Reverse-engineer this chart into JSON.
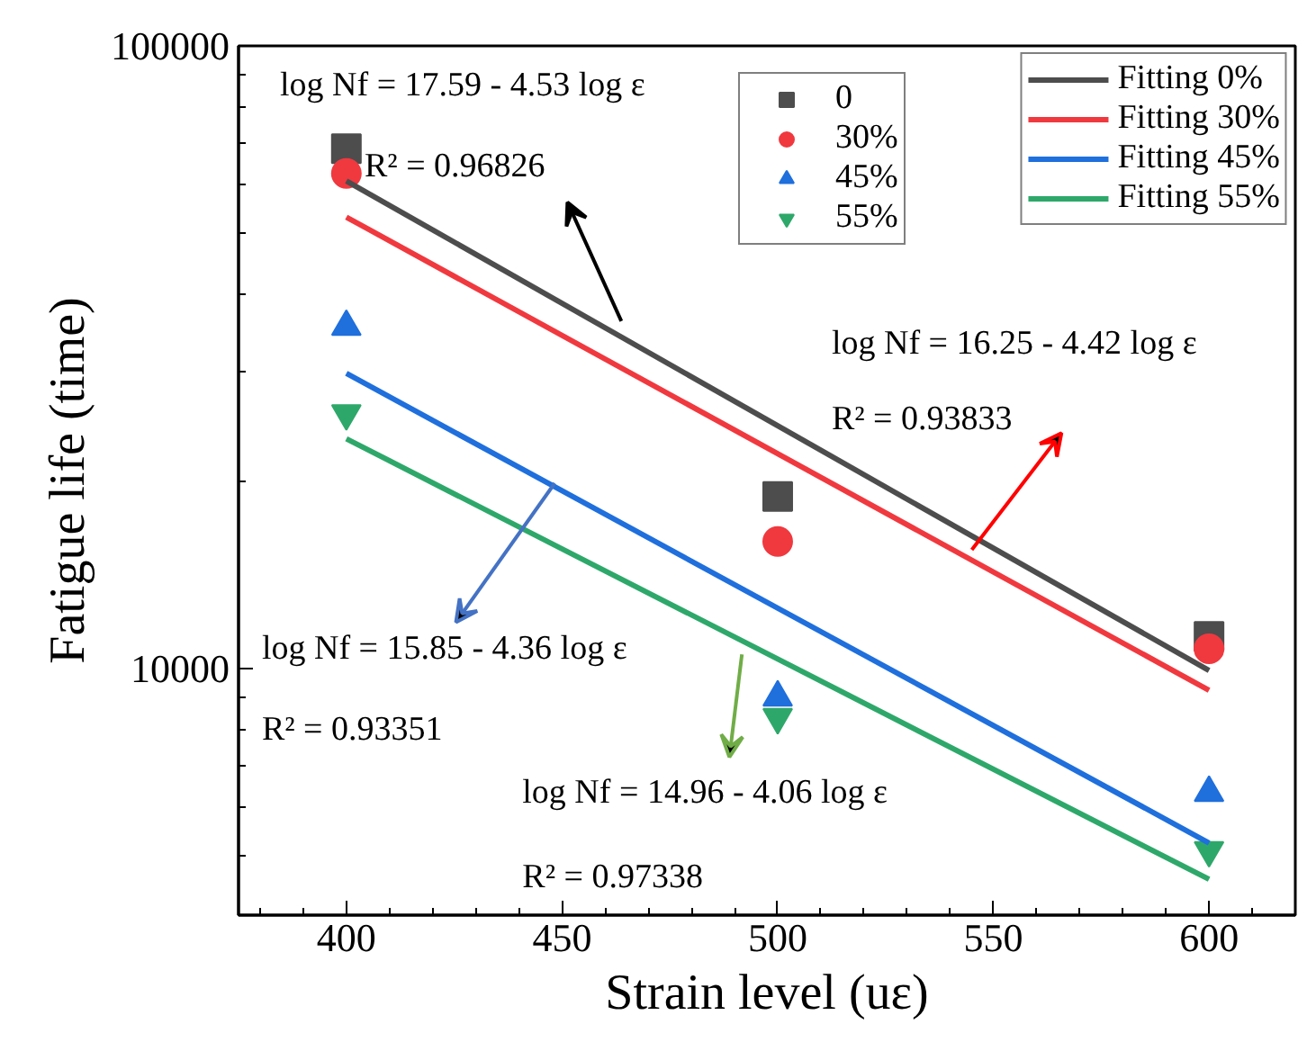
{
  "chart_data": {
    "type": "scatter",
    "xlabel": "Strain level (uε)",
    "ylabel": "Fatigue life (time)",
    "xlim": [
      375,
      620
    ],
    "ylim": [
      4020,
      100000
    ],
    "log": "y",
    "legend": "top right",
    "xticks": [
      {
        "value": 380,
        "label": null
      },
      {
        "value": 390,
        "label": null
      },
      400,
      {
        "value": 410,
        "label": null
      },
      {
        "value": 420,
        "label": null
      },
      {
        "value": 430,
        "label": null
      },
      {
        "value": 440,
        "label": null
      },
      450,
      {
        "value": 460,
        "label": null
      },
      {
        "value": 470,
        "label": null
      },
      {
        "value": 480,
        "label": null
      },
      {
        "value": 490,
        "label": null
      },
      500,
      {
        "value": 510,
        "label": null
      },
      {
        "value": 520,
        "label": null
      },
      {
        "value": 530,
        "label": null
      },
      {
        "value": 540,
        "label": null
      },
      550,
      {
        "value": 560,
        "label": null
      },
      {
        "value": 570,
        "label": null
      },
      {
        "value": 580,
        "label": null
      },
      {
        "value": 590,
        "label": null
      },
      600,
      {
        "value": 610,
        "label": null
      }
    ],
    "yticks": [
      {
        "value": 5000,
        "label": null
      },
      {
        "value": 6000,
        "label": null
      },
      {
        "value": 7000,
        "label": null
      },
      {
        "value": 8000,
        "label": null
      },
      {
        "value": 9000,
        "label": null
      },
      10000,
      {
        "value": 20000,
        "label": null
      },
      {
        "value": 30000,
        "label": null
      },
      {
        "value": 40000,
        "label": null
      },
      {
        "value": 50000,
        "label": null
      },
      {
        "value": 60000,
        "label": null
      },
      {
        "value": 70000,
        "label": null
      },
      {
        "value": 80000,
        "label": null
      },
      {
        "value": 90000,
        "label": null
      },
      100000
    ],
    "series": [
      {
        "name": "0",
        "marker": "square",
        "color": "#4d4d4d",
        "x": [
          400,
          500,
          600
        ],
        "values": [
          68400,
          18900,
          11270
        ]
      },
      {
        "name": "30%",
        "marker": "circle",
        "color": "#f0393f",
        "x": [
          400,
          500,
          600
        ],
        "values": [
          62400,
          16000,
          10760
        ]
      },
      {
        "name": "45%",
        "marker": "triangle",
        "color": "#1f6fdd",
        "x": [
          400,
          500,
          600
        ],
        "values": [
          35400,
          8990,
          6320
        ]
      },
      {
        "name": "55%",
        "color": "#2ea86a",
        "x": [
          400,
          500,
          600
        ],
        "values": [
          25700,
          8360,
          5110
        ]
      },
      {
        "name": "Fitting 0%",
        "type": "line",
        "color": "#4d4d4d",
        "x": [
          400,
          600
        ],
        "values": [
          60700,
          9930
        ]
      },
      {
        "name": "Fitting 30%",
        "type": "line",
        "color": "#f0393f",
        "x": [
          400,
          600
        ],
        "values": [
          53100,
          9230
        ]
      },
      {
        "name": "Fitting 45%",
        "type": "line",
        "color": "#1f6fdd",
        "x": [
          400,
          600
        ],
        "values": [
          29800,
          5250
        ]
      },
      {
        "name": "Fitting 55%",
        "type": "line",
        "color": "#2ea86a",
        "x": [
          400,
          600
        ],
        "values": [
          23400,
          4590
        ]
      }
    ],
    "annotations": [
      "log Nf = 17.59 - 4.53 log ε",
      "R² = 0.96826",
      "log Nf = 16.25 - 4.42 log ε",
      "R² = 0.93833",
      "log Nf = 15.85 - 4.36 log ε",
      "R² = 0.93351",
      "log Nf = 14.96 - 4.06 log ε",
      "R² = 0.97338"
    ]
  }
}
